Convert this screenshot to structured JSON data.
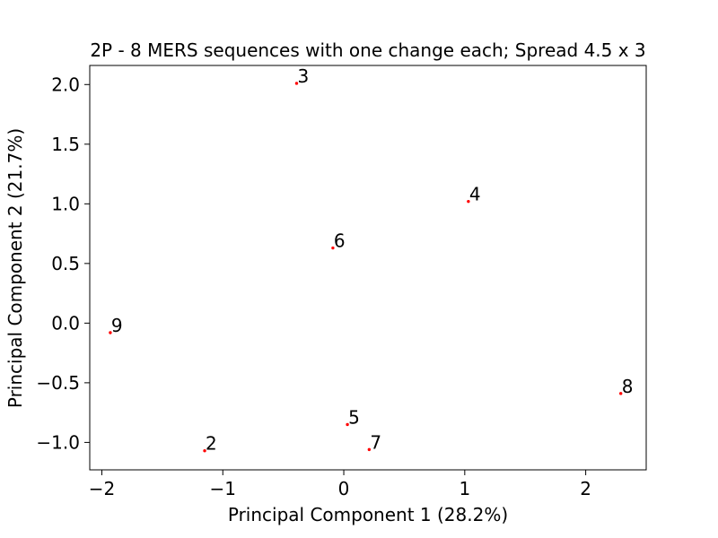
{
  "chart_data": {
    "type": "scatter",
    "title": "2P - 8 MERS sequences with one change each; Spread 4.5 x 3",
    "xlabel": "Principal Component 1 (28.2%)",
    "ylabel": "Principal Component 2 (21.7%)",
    "xlim": [
      -2.1,
      2.5
    ],
    "ylim": [
      -1.23,
      2.16
    ],
    "grid": false,
    "x_ticks": [
      -2,
      -1,
      0,
      1,
      2
    ],
    "x_tick_labels": [
      "−2",
      "−1",
      "0",
      "1",
      "2"
    ],
    "y_ticks": [
      -1.0,
      -0.5,
      0.0,
      0.5,
      1.0,
      1.5,
      2.0
    ],
    "y_tick_labels": [
      "−1.0",
      "−0.5",
      "0.0",
      "0.5",
      "1.0",
      "1.5",
      "2.0"
    ],
    "marker_color": "#ff0000",
    "points": [
      {
        "label": "2",
        "x": -1.15,
        "y": -1.07
      },
      {
        "label": "3",
        "x": -0.39,
        "y": 2.01
      },
      {
        "label": "4",
        "x": 1.03,
        "y": 1.02
      },
      {
        "label": "5",
        "x": 0.03,
        "y": -0.85
      },
      {
        "label": "6",
        "x": -0.09,
        "y": 0.63
      },
      {
        "label": "7",
        "x": 0.21,
        "y": -1.06
      },
      {
        "label": "8",
        "x": 2.29,
        "y": -0.59
      },
      {
        "label": "9",
        "x": -1.93,
        "y": -0.08
      }
    ]
  }
}
